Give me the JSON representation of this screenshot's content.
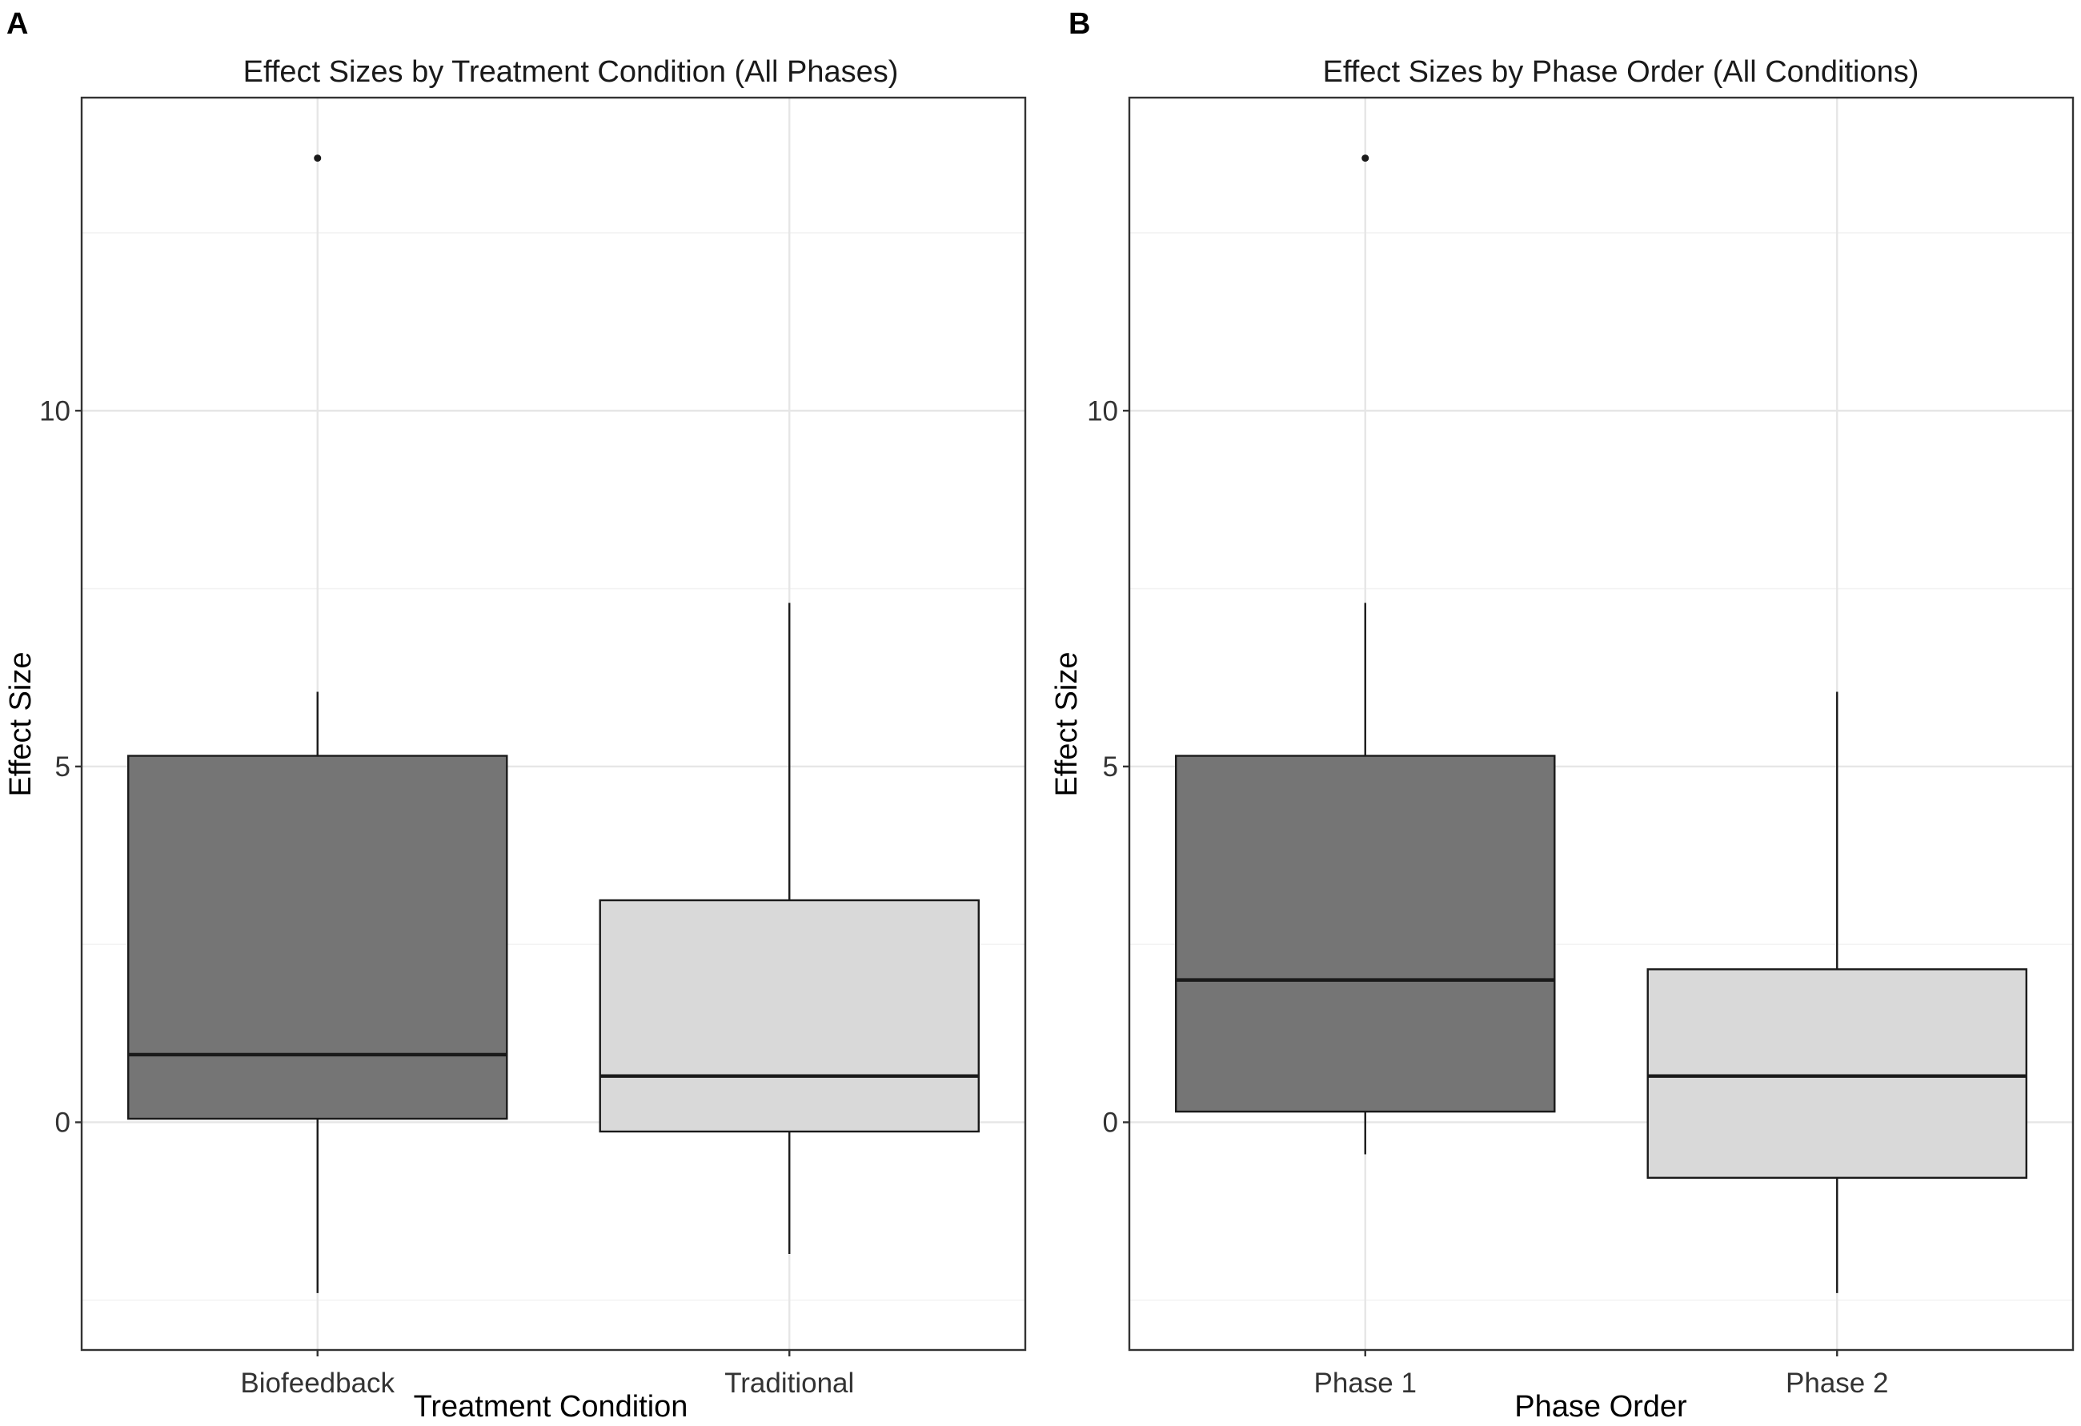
{
  "chart_data": [
    {
      "type": "box",
      "panel_label": "A",
      "title": "Effect Sizes by Treatment Condition (All Phases)",
      "xlabel": "Treatment Condition",
      "ylabel": "Effect Size",
      "ylim": [
        -3.2,
        14.4
      ],
      "yticks": [
        0,
        5,
        10
      ],
      "grid": true,
      "categories": [
        "Biofeedback",
        "Traditional"
      ],
      "boxes": [
        {
          "category": "Biofeedback",
          "lower_whisker": -2.4,
          "q1": 0.05,
          "median": 0.95,
          "q3": 5.15,
          "upper_whisker": 6.05,
          "outliers": [
            13.55
          ],
          "fill": "#757575"
        },
        {
          "category": "Traditional",
          "lower_whisker": -1.85,
          "q1": -0.13,
          "median": 0.65,
          "q3": 3.12,
          "upper_whisker": 7.3,
          "outliers": [],
          "fill": "#d9d9d9"
        }
      ]
    },
    {
      "type": "box",
      "panel_label": "B",
      "title": "Effect Sizes by Phase Order (All Conditions)",
      "xlabel": "Phase Order",
      "ylabel": "Effect Size",
      "ylim": [
        -3.2,
        14.4
      ],
      "yticks": [
        0,
        5,
        10
      ],
      "grid": true,
      "categories": [
        "Phase 1",
        "Phase 2"
      ],
      "boxes": [
        {
          "category": "Phase 1",
          "lower_whisker": -0.45,
          "q1": 0.15,
          "median": 2.0,
          "q3": 5.15,
          "upper_whisker": 7.3,
          "outliers": [
            13.55
          ],
          "fill": "#757575"
        },
        {
          "category": "Phase 2",
          "lower_whisker": -2.4,
          "q1": -0.78,
          "median": 0.65,
          "q3": 2.15,
          "upper_whisker": 6.05,
          "outliers": [],
          "fill": "#d9d9d9"
        }
      ]
    }
  ]
}
